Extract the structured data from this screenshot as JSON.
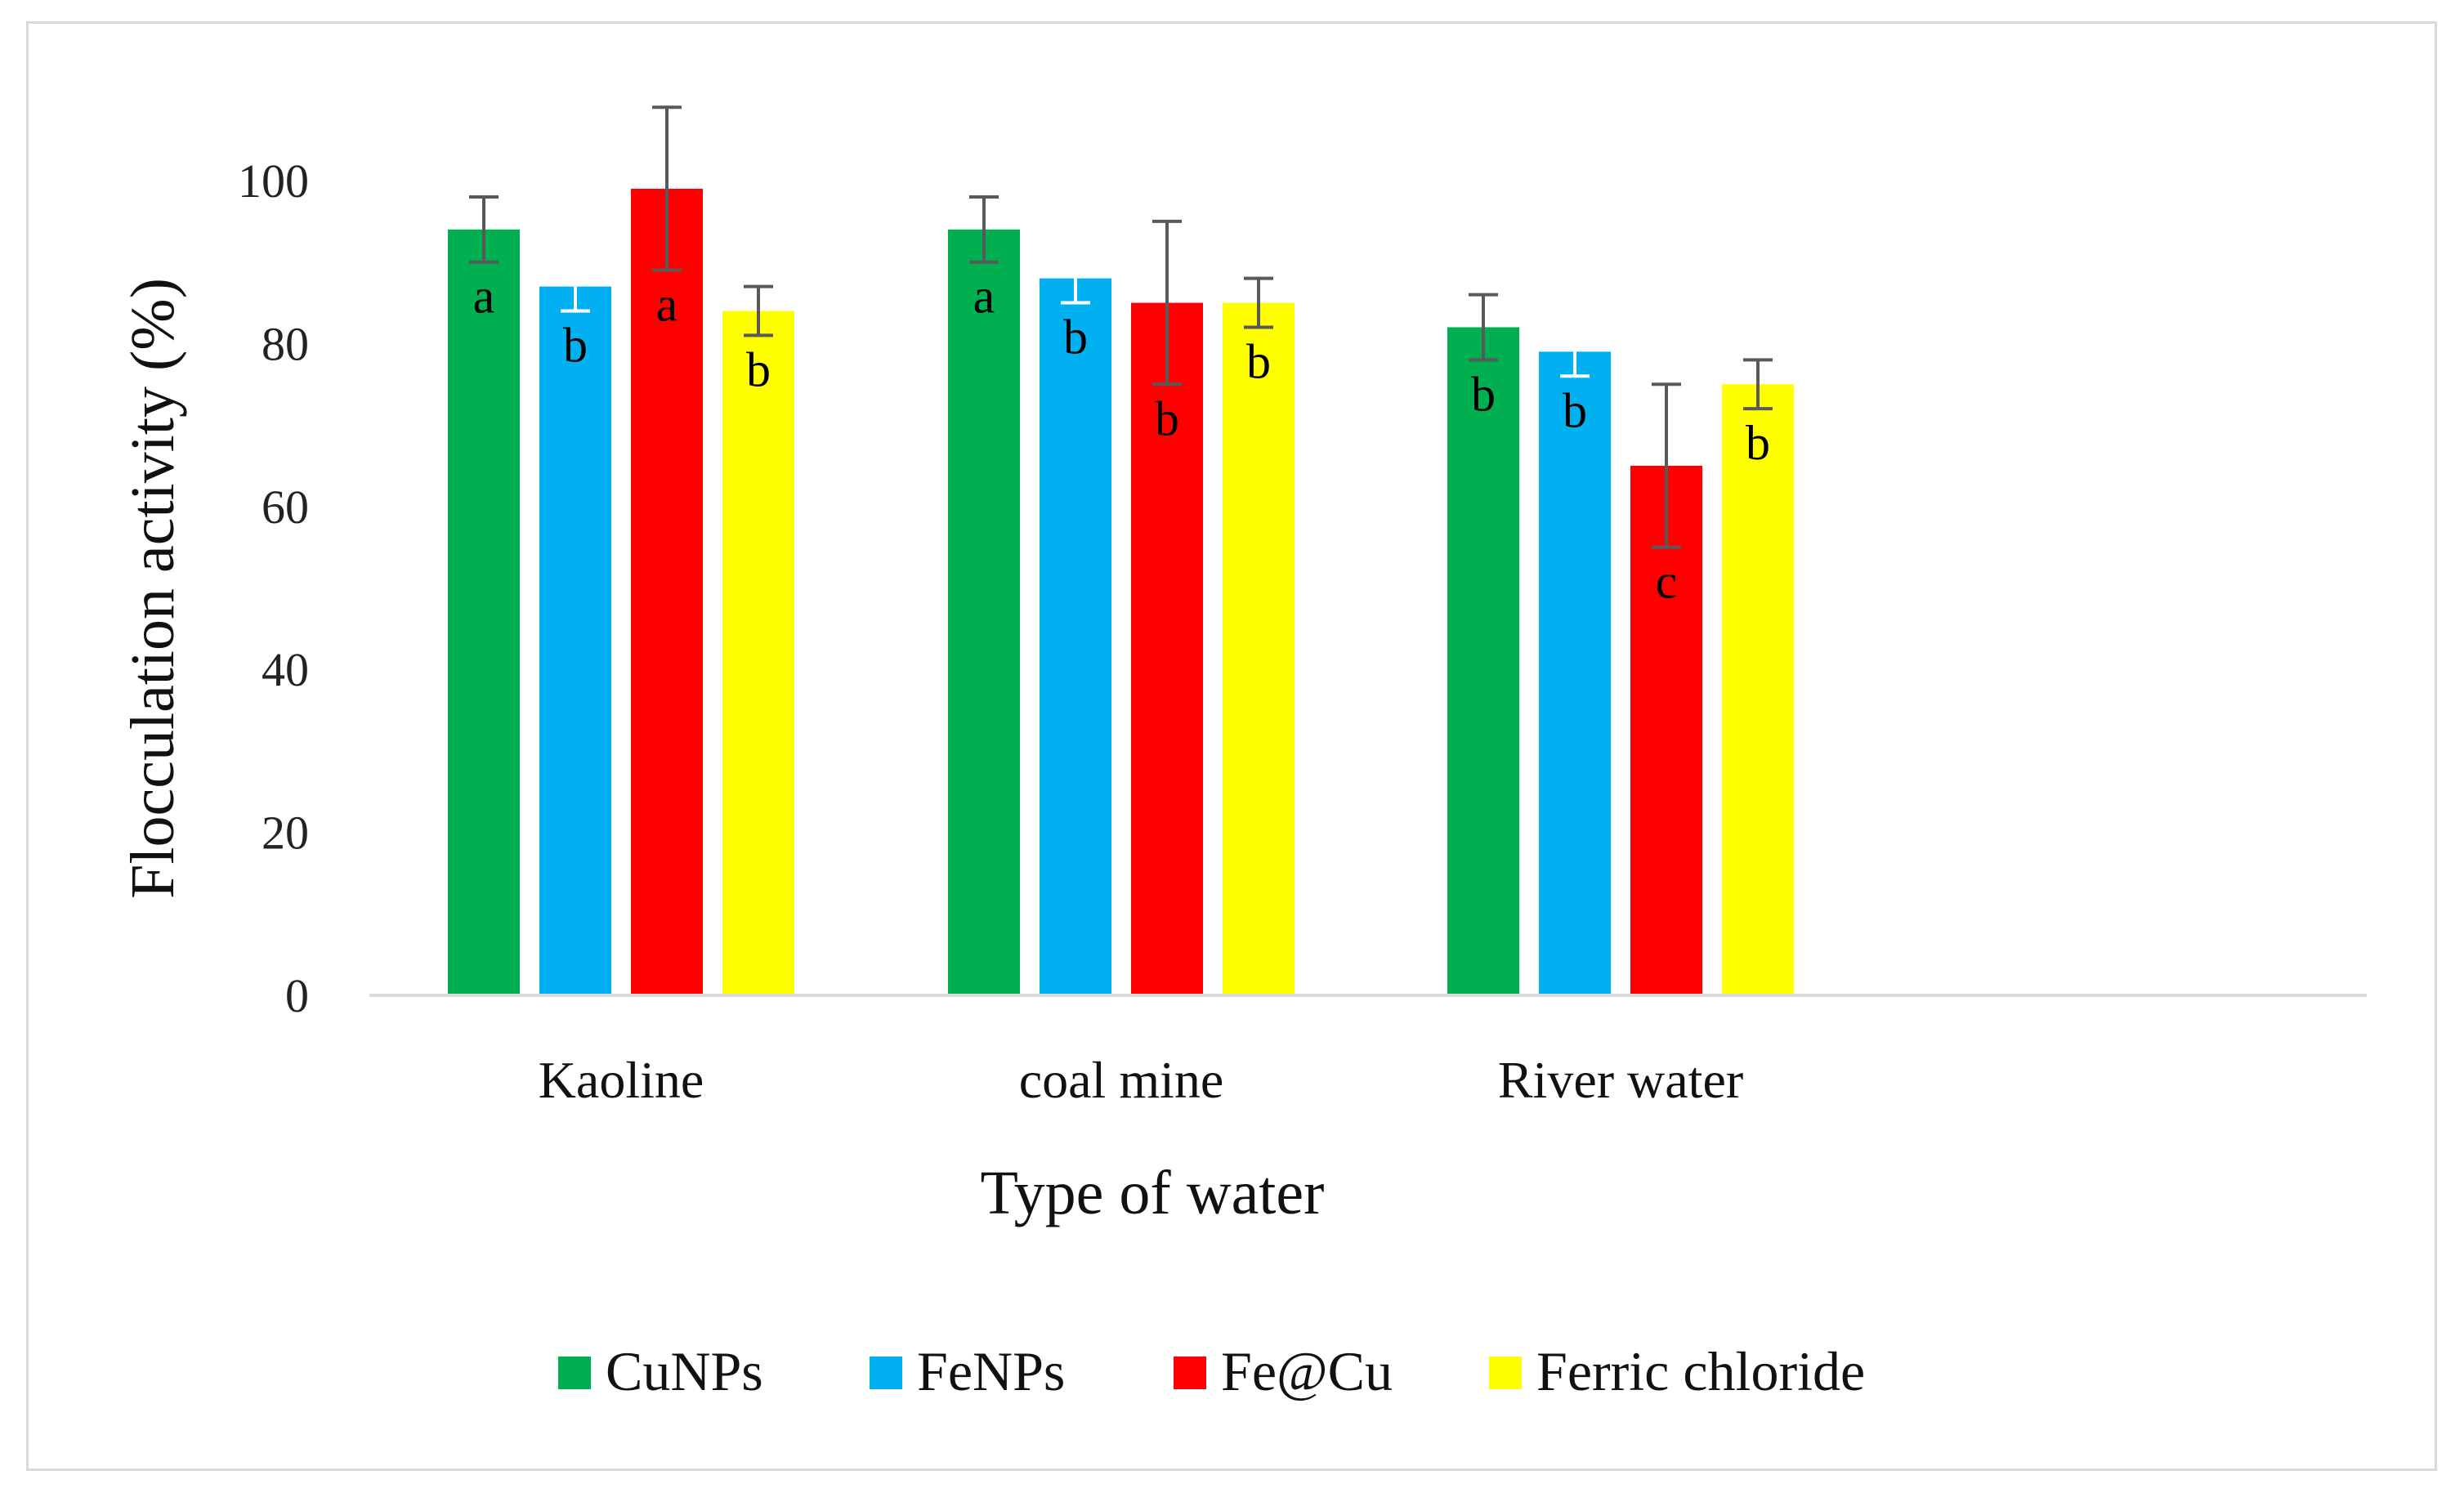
{
  "chart_data": {
    "type": "bar",
    "title": "",
    "xlabel": "Type of water",
    "ylabel": "Flocculation activity (%)",
    "ylim": [
      0,
      100
    ],
    "yticks": [
      0,
      20,
      40,
      60,
      80,
      100
    ],
    "grid": false,
    "legend_position": "bottom",
    "categories": [
      "Kaoline",
      "coal mine",
      "River water"
    ],
    "series": [
      {
        "name": "CuNPs",
        "color": "#00b050",
        "values": [
          94,
          94,
          82
        ],
        "errors": [
          4,
          4,
          4
        ],
        "labels": [
          "a",
          "a",
          "b"
        ]
      },
      {
        "name": "FeNPs",
        "color": "#00b0f0",
        "values": [
          87,
          88,
          79
        ],
        "errors": [
          3,
          3,
          3
        ],
        "labels": [
          "b",
          "b",
          "b"
        ]
      },
      {
        "name": "Fe@Cu",
        "color": "#ff0000",
        "values": [
          99,
          85,
          65
        ],
        "errors": [
          10,
          10,
          10
        ],
        "labels": [
          "a",
          "b",
          "c"
        ]
      },
      {
        "name": "Ferric chloride",
        "color": "#ffff00",
        "values": [
          84,
          85,
          75
        ],
        "errors": [
          3,
          3,
          3
        ],
        "labels": [
          "b",
          "b",
          "b"
        ]
      }
    ]
  }
}
